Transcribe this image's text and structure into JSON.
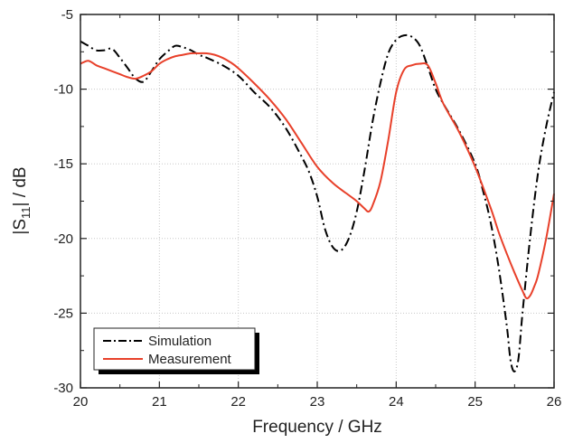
{
  "chart_data": {
    "type": "line",
    "xlabel": "Frequency / GHz",
    "ylabel_parts": [
      "|S",
      "11",
      "| / dB"
    ],
    "xlim": [
      20,
      26
    ],
    "ylim": [
      -30,
      -5
    ],
    "xticks": [
      "20",
      "21",
      "22",
      "23",
      "24",
      "25",
      "26"
    ],
    "yticks": [
      "-30",
      "-25",
      "-20",
      "-15",
      "-10",
      "-5"
    ],
    "grid": true,
    "legend_position": "bottom-left",
    "series": [
      {
        "name": "Simulation",
        "color": "#000000",
        "dash": "dash-dot",
        "x": [
          20.0,
          20.1,
          20.2,
          20.3,
          20.4,
          20.5,
          20.6,
          20.7,
          20.8,
          20.9,
          21.0,
          21.1,
          21.2,
          21.3,
          21.4,
          21.5,
          21.6,
          21.8,
          22.0,
          22.2,
          22.4,
          22.6,
          22.8,
          22.9,
          23.0,
          23.1,
          23.2,
          23.3,
          23.4,
          23.5,
          23.6,
          23.7,
          23.8,
          23.9,
          24.0,
          24.1,
          24.2,
          24.3,
          24.4,
          24.5,
          24.6,
          24.8,
          25.0,
          25.1,
          25.2,
          25.3,
          25.4,
          25.45,
          25.5,
          25.55,
          25.6,
          25.7,
          25.8,
          25.9,
          26.0
        ],
        "y": [
          -6.8,
          -7.1,
          -7.4,
          -7.4,
          -7.3,
          -7.9,
          -8.6,
          -9.3,
          -9.5,
          -8.8,
          -8.0,
          -7.5,
          -7.1,
          -7.2,
          -7.4,
          -7.7,
          -7.9,
          -8.4,
          -9.1,
          -10.2,
          -11.2,
          -12.6,
          -14.5,
          -15.6,
          -17.2,
          -19.4,
          -20.6,
          -20.8,
          -20.0,
          -18.2,
          -15.4,
          -12.2,
          -9.6,
          -7.6,
          -6.7,
          -6.4,
          -6.5,
          -7.1,
          -8.5,
          -10.0,
          -11.0,
          -12.8,
          -15.0,
          -16.8,
          -19.0,
          -22.0,
          -25.8,
          -28.2,
          -28.9,
          -28.0,
          -25.0,
          -19.8,
          -15.5,
          -12.5,
          -10.2
        ]
      },
      {
        "name": "Measurement",
        "color": "#e8402a",
        "dash": "solid",
        "x": [
          20.0,
          20.1,
          20.2,
          20.3,
          20.4,
          20.5,
          20.6,
          20.7,
          20.8,
          20.9,
          21.0,
          21.1,
          21.2,
          21.3,
          21.4,
          21.5,
          21.6,
          21.7,
          21.8,
          21.9,
          22.0,
          22.2,
          22.4,
          22.6,
          22.8,
          23.0,
          23.2,
          23.4,
          23.5,
          23.6,
          23.65,
          23.7,
          23.8,
          23.9,
          24.0,
          24.1,
          24.2,
          24.3,
          24.4,
          24.5,
          24.6,
          24.8,
          25.0,
          25.2,
          25.3,
          25.4,
          25.5,
          25.6,
          25.65,
          25.7,
          25.75,
          25.8,
          25.9,
          26.0
        ],
        "y": [
          -8.3,
          -8.1,
          -8.4,
          -8.6,
          -8.8,
          -9.0,
          -9.2,
          -9.3,
          -9.1,
          -8.8,
          -8.3,
          -8.0,
          -7.8,
          -7.7,
          -7.6,
          -7.6,
          -7.6,
          -7.7,
          -7.9,
          -8.2,
          -8.6,
          -9.6,
          -10.7,
          -12.0,
          -13.6,
          -15.2,
          -16.3,
          -17.1,
          -17.5,
          -18.0,
          -18.2,
          -17.8,
          -16.2,
          -13.4,
          -10.2,
          -8.7,
          -8.4,
          -8.3,
          -8.4,
          -9.6,
          -11.0,
          -12.9,
          -15.2,
          -18.0,
          -19.6,
          -21.0,
          -22.3,
          -23.5,
          -24.0,
          -23.8,
          -23.2,
          -22.4,
          -20.0,
          -17.0
        ]
      }
    ]
  }
}
